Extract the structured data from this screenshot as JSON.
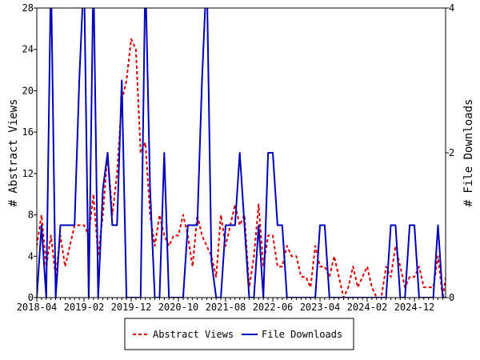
{
  "chart_data": {
    "type": "line",
    "title": "",
    "xlabel": "",
    "ylabel": "# Abstract Views",
    "ylabel_right": "# File Downloads",
    "ylim": [
      0,
      28
    ],
    "ylim_right": [
      0,
      4
    ],
    "yticks": [
      "0",
      "4",
      "8",
      "12",
      "16",
      "20",
      "24",
      "28"
    ],
    "yticks_right": [
      "0",
      "2",
      "4"
    ],
    "xtick_labels": [
      "2018-04",
      "2019-02",
      "2019-12",
      "2020-10",
      "2021-08",
      "2022-06",
      "2023-04",
      "2024-02",
      "2024-12"
    ],
    "x_start": "2018-04",
    "x_step": "1 month",
    "grid": false,
    "legend_position": "bottom",
    "series": [
      {
        "name": "Abstract Views",
        "axis": "left",
        "color": "#dd0000",
        "style": "dashed",
        "values": [
          5,
          8,
          3,
          6,
          2,
          6,
          3,
          5,
          7,
          7,
          7,
          6,
          10,
          4,
          8,
          14,
          8,
          12,
          19,
          21,
          25,
          24,
          14,
          15,
          8,
          5,
          8,
          6,
          5,
          6,
          6,
          8,
          6,
          3,
          8,
          6,
          5,
          4,
          2,
          8,
          5,
          7,
          9,
          7,
          8,
          1,
          4,
          9,
          3,
          6,
          6,
          3,
          3,
          5,
          4,
          4,
          2,
          2,
          1,
          5,
          3,
          3,
          2,
          4,
          2,
          0,
          1,
          3,
          1,
          2,
          3,
          1,
          0,
          0,
          3,
          2,
          5,
          3,
          1,
          2,
          2,
          3,
          1,
          1,
          1,
          4,
          0,
          3
        ]
      },
      {
        "name": "File Downloads",
        "axis": "right",
        "color": "#0000bb",
        "style": "solid",
        "values": [
          0,
          1,
          0,
          4.5,
          0,
          1,
          1,
          1,
          1,
          3,
          4.5,
          0,
          4.5,
          0,
          1.5,
          2,
          1,
          1,
          3,
          0,
          0,
          0,
          0,
          4.5,
          1.5,
          0,
          0,
          2,
          0,
          0,
          0,
          0,
          1,
          1,
          1,
          3,
          4.5,
          0.5,
          0,
          0,
          1,
          1,
          1,
          2,
          1,
          0,
          0,
          1,
          0,
          2,
          2,
          1,
          1,
          0,
          0,
          0,
          0,
          0,
          0,
          0,
          1,
          1,
          0,
          0,
          0,
          0,
          0,
          0,
          0,
          0,
          0,
          0,
          0,
          0,
          0,
          1,
          1,
          0,
          0,
          1,
          1,
          0,
          0,
          0,
          0,
          1,
          0,
          0
        ]
      }
    ]
  }
}
